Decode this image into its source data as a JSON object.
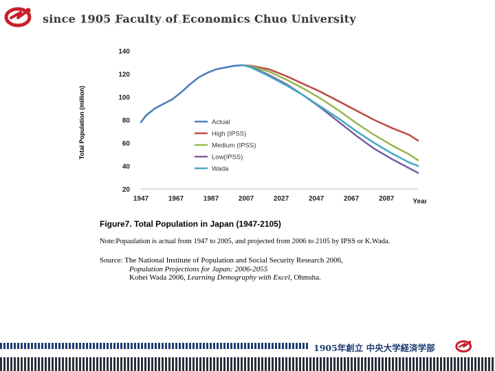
{
  "header": {
    "title": "since 1905 Faculty of Economics Chuo University"
  },
  "chart_data": {
    "type": "line",
    "ylabel": "Total Population (million)",
    "xlabel": "Year",
    "x_ticks": [
      1947,
      1967,
      1987,
      2007,
      2027,
      2047,
      2067,
      2087
    ],
    "y_ticks": [
      20,
      40,
      60,
      80,
      100,
      120,
      140
    ],
    "xlim": [
      1947,
      2105
    ],
    "ylim": [
      20,
      140
    ],
    "grid": false,
    "legend_position": "left-middle",
    "series": [
      {
        "name": "Actual",
        "color": "#4a7ebb",
        "x": [
          1947,
          1950,
          1955,
          1960,
          1965,
          1970,
          1975,
          1980,
          1985,
          1990,
          1995,
          2000,
          2005
        ],
        "values": [
          78,
          84,
          90,
          94,
          98,
          104,
          111,
          117,
          121,
          124,
          125.5,
          127,
          127.5
        ]
      },
      {
        "name": "High (IPSS)",
        "color": "#be4b48",
        "x": [
          2005,
          2010,
          2020,
          2030,
          2040,
          2050,
          2060,
          2070,
          2080,
          2090,
          2100,
          2105
        ],
        "values": [
          127.5,
          127,
          124,
          118,
          111,
          104,
          96,
          88,
          80,
          73,
          67,
          62
        ]
      },
      {
        "name": "Medium (IPSS)",
        "color": "#98b954",
        "x": [
          2005,
          2010,
          2020,
          2030,
          2040,
          2050,
          2060,
          2070,
          2080,
          2090,
          2100,
          2105
        ],
        "values": [
          127.5,
          126.5,
          122,
          115,
          107,
          98,
          88,
          77,
          67,
          58,
          50,
          45
        ]
      },
      {
        "name": "Low(IPSS)",
        "color": "#7d60a0",
        "x": [
          2005,
          2010,
          2020,
          2030,
          2040,
          2050,
          2060,
          2070,
          2080,
          2090,
          2100,
          2105
        ],
        "values": [
          127.5,
          126,
          119,
          111,
          101,
          90,
          78,
          66,
          55,
          46,
          38,
          34
        ]
      },
      {
        "name": "Wada",
        "color": "#46aac5",
        "x": [
          2005,
          2010,
          2020,
          2030,
          2040,
          2050,
          2060,
          2070,
          2080,
          2090,
          2100,
          2105
        ],
        "values": [
          127.5,
          125.5,
          118,
          110,
          101,
          91,
          81,
          70,
          60,
          51,
          43,
          40
        ]
      }
    ]
  },
  "caption": {
    "title": "Figure7. Total Population in Japan (1947-2105)",
    "note": "Note:Popaulation is actual from 1947 to 2005, and projected from 2006 to 2105 by IPSS or K.Wada.",
    "source_line1": "Source: The National Institute of Population and Social Security Research 2006,",
    "source_line2": "Population Projections for Japan: 2006-2055",
    "source_line3_prefix": "Kohei Wada 2006,",
    "source_line3_italic": "Learning Demography with Excel",
    "source_line3_suffix": ", Ohmsha."
  },
  "footer": {
    "text": "1905年創立 中央大学経済学部"
  },
  "colors": {
    "brand_red": "#c8202a",
    "navy": "#1d3a73"
  }
}
